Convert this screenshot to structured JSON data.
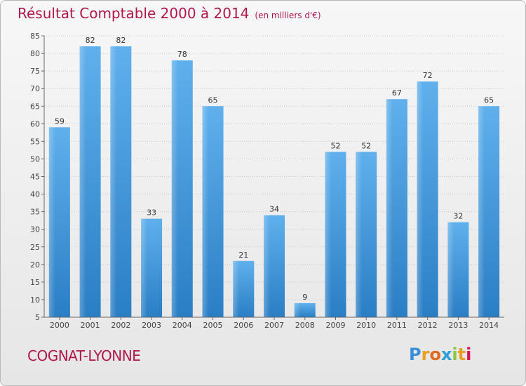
{
  "title": "Résultat Comptable 2000 à 2014",
  "unit": "(en milliers d'€)",
  "place": "COGNAT-LYONNE",
  "brand": {
    "letters": [
      "P",
      "r",
      "o",
      "x",
      "i",
      "t",
      "i"
    ],
    "colors": [
      "#3a8fd8",
      "#e8a020",
      "#e06a20",
      "#2a9fd8",
      "#8cc63f",
      "#e8a020",
      "#d4145a"
    ]
  },
  "chart_data": {
    "type": "bar",
    "title": "Résultat Comptable 2000 à 2014",
    "ylabel": "(en milliers d'€)",
    "categories": [
      "2000",
      "2001",
      "2002",
      "2003",
      "2004",
      "2005",
      "2006",
      "2007",
      "2008",
      "2009",
      "2010",
      "2011",
      "2012",
      "2013",
      "2014"
    ],
    "values": [
      59,
      82,
      82,
      33,
      78,
      65,
      21,
      34,
      9,
      52,
      52,
      67,
      72,
      32,
      65
    ],
    "ylim": [
      5,
      85
    ],
    "yticks": [
      5,
      10,
      15,
      20,
      25,
      30,
      35,
      40,
      45,
      50,
      55,
      60,
      65,
      70,
      75,
      80,
      85
    ],
    "grid": true
  }
}
